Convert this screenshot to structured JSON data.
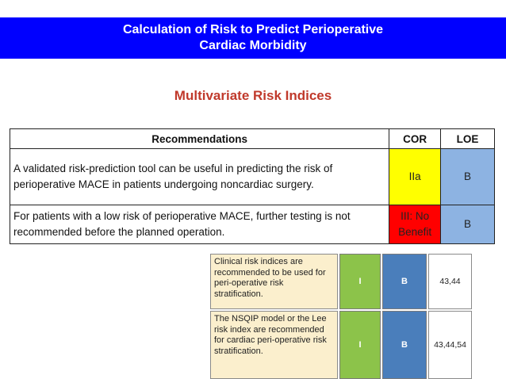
{
  "banner": {
    "title_line1": "Calculation of Risk to Predict Perioperative",
    "title_line2": "Cardiac Morbidity"
  },
  "subtitle": "Multivariate Risk Indices",
  "table": {
    "headers": {
      "recommendations": "Recommendations",
      "cor": "COR",
      "loe": "LOE"
    },
    "rows": [
      {
        "text": "A validated risk-prediction tool can be useful in predicting the risk of perioperative MACE in patients undergoing noncardiac surgery.",
        "cor": "IIa",
        "loe": "B"
      },
      {
        "text": "For patients with a low risk of perioperative MACE, further testing is not recommended before the planned operation.",
        "cor": "III: No Benefit",
        "loe": "B"
      }
    ]
  },
  "inset": {
    "rows": [
      {
        "text": "Clinical risk indices are recommended to be used for peri-operative risk stratification.",
        "cor": "I",
        "loe": "B",
        "refs": "43,44"
      },
      {
        "text": "The NSQIP model or the Lee risk index are recommended for cardiac peri-operative risk stratification.",
        "cor": "I",
        "loe": "B",
        "refs": "43,44,54"
      }
    ]
  },
  "colors": {
    "banner_bg": "#0000ff",
    "subtitle": "#c0392b",
    "cor_iia": "#ffff00",
    "cor_iii": "#ff0000",
    "loe_b": "#8db3e2",
    "inset_text_bg": "#fbefcd",
    "inset_cor": "#8cc34a",
    "inset_loe": "#4a7ebb"
  }
}
